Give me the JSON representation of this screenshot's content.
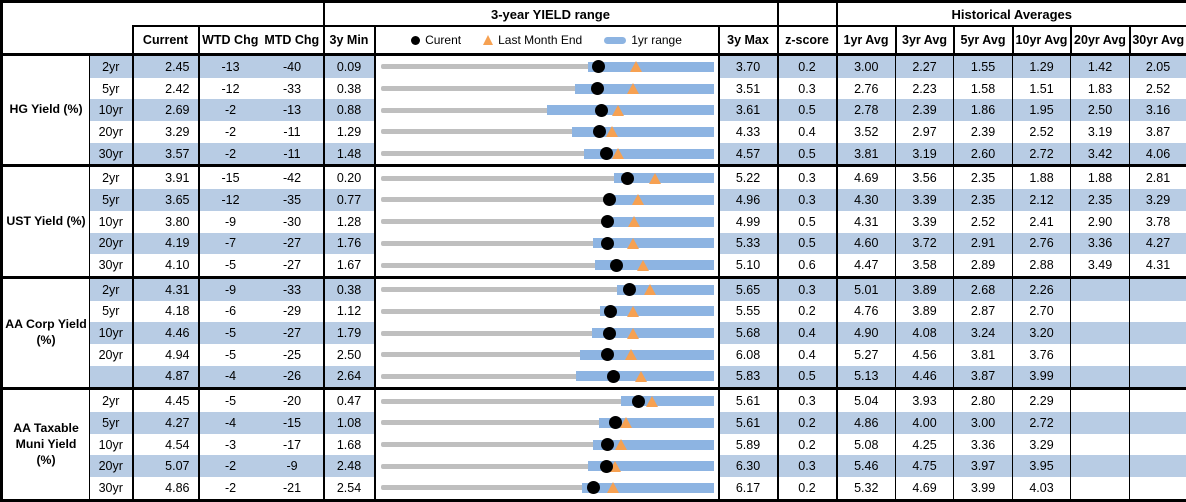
{
  "header": {
    "range_title": "3-year YIELD range",
    "hist_title": "Historical Averages",
    "cols": {
      "current": "Current",
      "wtd": "WTD Chg",
      "mtd": "MTD Chg",
      "min3y": "3y Min",
      "max3y": "3y Max",
      "zscore": "z-score",
      "avgs": [
        "1yr Avg",
        "3yr Avg",
        "5yr Avg",
        "10yr Avg",
        "20yr Avg",
        "30yr Avg"
      ]
    },
    "legend": {
      "current": "Curent",
      "last_month": "Last Month End",
      "range1yr": "1yr range"
    }
  },
  "colors": {
    "band_blue": "#B8CCE4",
    "bar_blue": "#8DB4E2",
    "track_gray": "#BFBFBF",
    "marker_orange": "#F6A152",
    "marker_black": "#000000",
    "border_black": "#000000"
  },
  "chart_data": {
    "type": "range-bullet-table",
    "title": "3-year YIELD range",
    "note": "Each row: gray track spans 3y Min to 3y Max; blue bar = 1yr range; black dot = current; orange triangle = last month end.",
    "groups": [
      {
        "label": "HG Yield (%)",
        "rows": [
          {
            "tenor": "2yr",
            "current": "2.45",
            "wtd_chg": "-13",
            "mtd_chg": "-40",
            "min_3y": "0.09",
            "max_3y": "3.70",
            "z_score": "0.2",
            "avgs": [
              "3.00",
              "2.27",
              "1.55",
              "1.29",
              "1.42",
              "2.05"
            ],
            "range_1yr": [
              2.34,
              3.7
            ],
            "last_month_end": 2.85
          },
          {
            "tenor": "5yr",
            "current": "2.42",
            "wtd_chg": "-12",
            "mtd_chg": "-33",
            "min_3y": "0.38",
            "max_3y": "3.51",
            "z_score": "0.3",
            "avgs": [
              "2.76",
              "2.23",
              "1.58",
              "1.51",
              "1.83",
              "2.52"
            ],
            "range_1yr": [
              2.2,
              3.51
            ],
            "last_month_end": 2.75
          },
          {
            "tenor": "10yr",
            "current": "2.69",
            "wtd_chg": "-2",
            "mtd_chg": "-13",
            "min_3y": "0.88",
            "max_3y": "3.61",
            "z_score": "0.5",
            "avgs": [
              "2.78",
              "2.39",
              "1.86",
              "1.95",
              "2.50",
              "3.16"
            ],
            "range_1yr": [
              2.24,
              3.61
            ],
            "last_month_end": 2.82
          },
          {
            "tenor": "20yr",
            "current": "3.29",
            "wtd_chg": "-2",
            "mtd_chg": "-11",
            "min_3y": "1.29",
            "max_3y": "4.33",
            "z_score": "0.4",
            "avgs": [
              "3.52",
              "2.97",
              "2.39",
              "2.52",
              "3.19",
              "3.87"
            ],
            "range_1yr": [
              3.03,
              4.33
            ],
            "last_month_end": 3.4
          },
          {
            "tenor": "30yr",
            "current": "3.57",
            "wtd_chg": "-2",
            "mtd_chg": "-11",
            "min_3y": "1.48",
            "max_3y": "4.57",
            "z_score": "0.5",
            "avgs": [
              "3.81",
              "3.19",
              "2.60",
              "2.72",
              "3.42",
              "4.06"
            ],
            "range_1yr": [
              3.36,
              4.57
            ],
            "last_month_end": 3.68
          }
        ]
      },
      {
        "label": "UST Yield (%)",
        "rows": [
          {
            "tenor": "2yr",
            "current": "3.91",
            "wtd_chg": "-15",
            "mtd_chg": "-42",
            "min_3y": "0.20",
            "max_3y": "5.22",
            "z_score": "0.3",
            "avgs": [
              "4.69",
              "3.56",
              "2.35",
              "1.88",
              "1.88",
              "2.81"
            ],
            "range_1yr": [
              3.71,
              5.22
            ],
            "last_month_end": 4.33
          },
          {
            "tenor": "5yr",
            "current": "3.65",
            "wtd_chg": "-12",
            "mtd_chg": "-35",
            "min_3y": "0.77",
            "max_3y": "4.96",
            "z_score": "0.3",
            "avgs": [
              "4.30",
              "3.39",
              "2.35",
              "2.12",
              "2.35",
              "3.29"
            ],
            "range_1yr": [
              3.6,
              4.96
            ],
            "last_month_end": 4.0
          },
          {
            "tenor": "10yr",
            "current": "3.80",
            "wtd_chg": "-9",
            "mtd_chg": "-30",
            "min_3y": "1.28",
            "max_3y": "4.99",
            "z_score": "0.5",
            "avgs": [
              "4.31",
              "3.39",
              "2.52",
              "2.41",
              "2.90",
              "3.78"
            ],
            "range_1yr": [
              3.75,
              4.99
            ],
            "last_month_end": 4.1
          },
          {
            "tenor": "20yr",
            "current": "4.19",
            "wtd_chg": "-7",
            "mtd_chg": "-27",
            "min_3y": "1.76",
            "max_3y": "5.33",
            "z_score": "0.5",
            "avgs": [
              "4.60",
              "3.72",
              "2.91",
              "2.76",
              "3.36",
              "4.27"
            ],
            "range_1yr": [
              4.03,
              5.33
            ],
            "last_month_end": 4.46
          },
          {
            "tenor": "30yr",
            "current": "4.10",
            "wtd_chg": "-5",
            "mtd_chg": "-27",
            "min_3y": "1.67",
            "max_3y": "5.10",
            "z_score": "0.6",
            "avgs": [
              "4.47",
              "3.58",
              "2.89",
              "2.88",
              "3.49",
              "4.31"
            ],
            "range_1yr": [
              3.88,
              5.1
            ],
            "last_month_end": 4.37
          }
        ]
      },
      {
        "label": "AA Corp Yield (%)",
        "rows": [
          {
            "tenor": "2yr",
            "current": "4.31",
            "wtd_chg": "-9",
            "mtd_chg": "-33",
            "min_3y": "0.38",
            "max_3y": "5.65",
            "z_score": "0.3",
            "avgs": [
              "5.01",
              "3.89",
              "2.68",
              "2.26",
              "",
              ""
            ],
            "range_1yr": [
              4.12,
              5.65
            ],
            "last_month_end": 4.64
          },
          {
            "tenor": "5yr",
            "current": "4.18",
            "wtd_chg": "-6",
            "mtd_chg": "-29",
            "min_3y": "1.12",
            "max_3y": "5.55",
            "z_score": "0.2",
            "avgs": [
              "4.76",
              "3.89",
              "2.87",
              "2.70",
              "",
              ""
            ],
            "range_1yr": [
              4.03,
              5.55
            ],
            "last_month_end": 4.47
          },
          {
            "tenor": "10yr",
            "current": "4.46",
            "wtd_chg": "-5",
            "mtd_chg": "-27",
            "min_3y": "1.79",
            "max_3y": "5.68",
            "z_score": "0.4",
            "avgs": [
              "4.90",
              "4.08",
              "3.24",
              "3.20",
              "",
              ""
            ],
            "range_1yr": [
              4.26,
              5.68
            ],
            "last_month_end": 4.73
          },
          {
            "tenor": "20yr",
            "current": "4.94",
            "wtd_chg": "-5",
            "mtd_chg": "-25",
            "min_3y": "2.50",
            "max_3y": "6.08",
            "z_score": "0.4",
            "avgs": [
              "5.27",
              "4.56",
              "3.81",
              "3.76",
              "",
              ""
            ],
            "range_1yr": [
              4.64,
              6.08
            ],
            "last_month_end": 5.19
          },
          {
            "tenor": "",
            "current": "4.87",
            "wtd_chg": "-4",
            "mtd_chg": "-26",
            "min_3y": "2.64",
            "max_3y": "5.83",
            "z_score": "0.5",
            "avgs": [
              "5.13",
              "4.46",
              "3.87",
              "3.99",
              "",
              ""
            ],
            "range_1yr": [
              4.51,
              5.83
            ],
            "last_month_end": 5.13
          }
        ]
      },
      {
        "label": "AA Taxable Muni Yield (%)",
        "rows": [
          {
            "tenor": "2yr",
            "current": "4.45",
            "wtd_chg": "-5",
            "mtd_chg": "-20",
            "min_3y": "0.47",
            "max_3y": "5.61",
            "z_score": "0.3",
            "avgs": [
              "5.04",
              "3.93",
              "2.80",
              "2.29",
              "",
              ""
            ],
            "range_1yr": [
              4.17,
              5.61
            ],
            "last_month_end": 4.65
          },
          {
            "tenor": "5yr",
            "current": "4.27",
            "wtd_chg": "-4",
            "mtd_chg": "-15",
            "min_3y": "1.08",
            "max_3y": "5.61",
            "z_score": "0.2",
            "avgs": [
              "4.86",
              "4.00",
              "3.00",
              "2.72",
              "",
              ""
            ],
            "range_1yr": [
              4.05,
              5.61
            ],
            "last_month_end": 4.42
          },
          {
            "tenor": "10yr",
            "current": "4.54",
            "wtd_chg": "-3",
            "mtd_chg": "-17",
            "min_3y": "1.68",
            "max_3y": "5.89",
            "z_score": "0.2",
            "avgs": [
              "5.08",
              "4.25",
              "3.36",
              "3.29",
              "",
              ""
            ],
            "range_1yr": [
              4.36,
              5.89
            ],
            "last_month_end": 4.71
          },
          {
            "tenor": "20yr",
            "current": "5.07",
            "wtd_chg": "-2",
            "mtd_chg": "-9",
            "min_3y": "2.48",
            "max_3y": "6.30",
            "z_score": "0.3",
            "avgs": [
              "5.46",
              "4.75",
              "3.97",
              "3.95",
              "",
              ""
            ],
            "range_1yr": [
              4.86,
              6.3
            ],
            "last_month_end": 5.16
          },
          {
            "tenor": "30yr",
            "current": "4.86",
            "wtd_chg": "-2",
            "mtd_chg": "-21",
            "min_3y": "2.54",
            "max_3y": "6.17",
            "z_score": "0.2",
            "avgs": [
              "5.32",
              "4.69",
              "3.99",
              "4.03",
              "",
              ""
            ],
            "range_1yr": [
              4.73,
              6.17
            ],
            "last_month_end": 5.07
          }
        ]
      }
    ]
  }
}
